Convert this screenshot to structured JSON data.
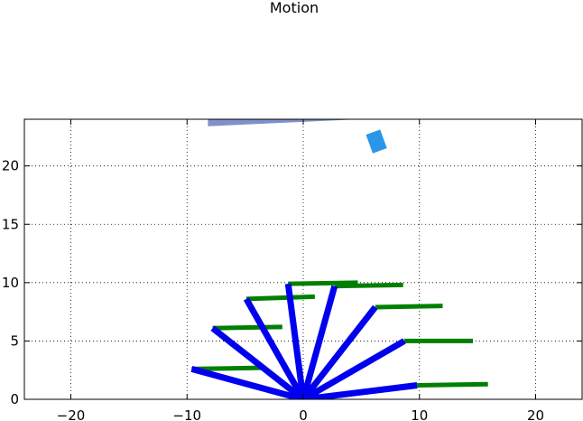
{
  "chart_data": {
    "type": "line",
    "title": "Motion",
    "xlabel": "",
    "ylabel": "",
    "xlim": [
      -24,
      24
    ],
    "ylim": [
      0,
      24
    ],
    "xticks": [
      -20,
      -10,
      0,
      10,
      20
    ],
    "yticks": [
      0,
      5,
      10,
      15,
      20
    ],
    "xtick_labels": [
      "−20",
      "−10",
      "0",
      "10",
      "20"
    ],
    "ytick_labels": [
      "0",
      "5",
      "10",
      "15",
      "20"
    ],
    "grid": true,
    "grid_style": "dotted",
    "arm_color": "#0000ee",
    "link_color": "#008000",
    "origin": [
      0,
      0
    ],
    "blue_links": [
      {
        "end": [
          9.8,
          1.2
        ]
      },
      {
        "end": [
          8.7,
          5.0
        ]
      },
      {
        "end": [
          6.2,
          7.9
        ]
      },
      {
        "end": [
          2.7,
          9.7
        ]
      },
      {
        "end": [
          -1.3,
          9.9
        ]
      },
      {
        "end": [
          -4.9,
          8.6
        ]
      },
      {
        "end": [
          -7.8,
          6.1
        ]
      },
      {
        "end": [
          -9.6,
          2.6
        ]
      }
    ],
    "green_links": [
      {
        "start": [
          9.8,
          1.2
        ],
        "end": [
          15.9,
          1.3
        ]
      },
      {
        "start": [
          8.7,
          5.0
        ],
        "end": [
          14.6,
          5.0
        ]
      },
      {
        "start": [
          6.2,
          7.9
        ],
        "end": [
          12.0,
          8.0
        ]
      },
      {
        "start": [
          2.7,
          9.7
        ],
        "end": [
          8.6,
          9.8
        ]
      },
      {
        "start": [
          -1.3,
          9.9
        ],
        "end": [
          4.7,
          10.0
        ]
      },
      {
        "start": [
          -4.9,
          8.6
        ],
        "end": [
          1.0,
          8.8
        ]
      },
      {
        "start": [
          -7.8,
          6.1
        ],
        "end": [
          -1.8,
          6.2
        ]
      },
      {
        "start": [
          -9.6,
          2.6
        ],
        "end": [
          -3.6,
          2.7
        ]
      }
    ],
    "target_shape": {
      "color": "#2b96e8",
      "center": [
        6.3,
        22.1
      ],
      "width": 1.3,
      "height": 1.7,
      "angle": -20
    },
    "obstacle": {
      "color": "#8090cc",
      "points": [
        [
          -8.2,
          24.0
        ],
        [
          4.8,
          24.0
        ],
        [
          -8.2,
          23.4
        ]
      ]
    }
  }
}
